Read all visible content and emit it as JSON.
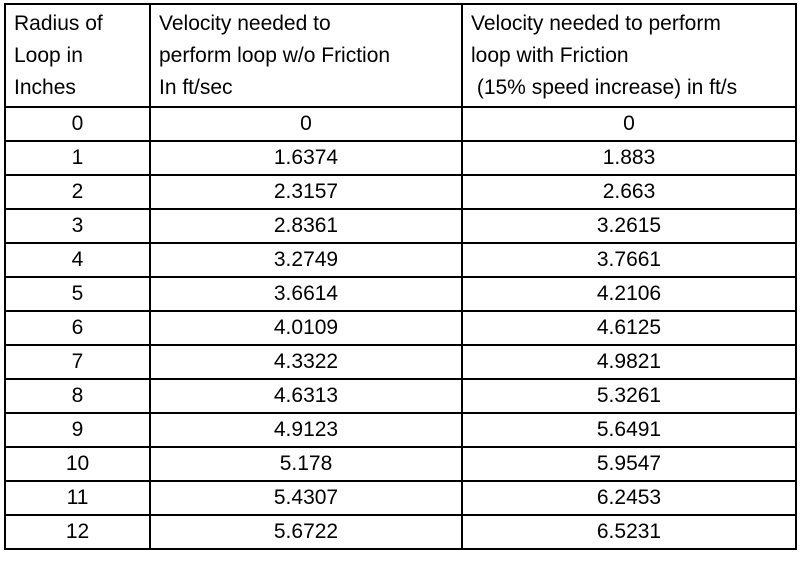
{
  "table": {
    "headers": [
      [
        "Radius of",
        "Loop in",
        "Inches"
      ],
      [
        "Velocity needed to",
        "perform loop w/o Friction",
        "In ft/sec"
      ],
      [
        "Velocity needed to perform",
        "loop with Friction",
        " (15% speed increase) in ft/s"
      ]
    ],
    "rows": [
      [
        "0",
        "0",
        "0"
      ],
      [
        "1",
        "1.6374",
        "1.883"
      ],
      [
        "2",
        "2.3157",
        "2.663"
      ],
      [
        "3",
        "2.8361",
        "3.2615"
      ],
      [
        "4",
        "3.2749",
        "3.7661"
      ],
      [
        "5",
        "3.6614",
        "4.2106"
      ],
      [
        "6",
        "4.0109",
        "4.6125"
      ],
      [
        "7",
        "4.3322",
        "4.9821"
      ],
      [
        "8",
        "4.6313",
        "5.3261"
      ],
      [
        "9",
        "4.9123",
        "5.6491"
      ],
      [
        "10",
        "5.178",
        "5.9547"
      ],
      [
        "11",
        "5.4307",
        "6.2453"
      ],
      [
        "12",
        "5.6722",
        "6.5231"
      ]
    ]
  }
}
